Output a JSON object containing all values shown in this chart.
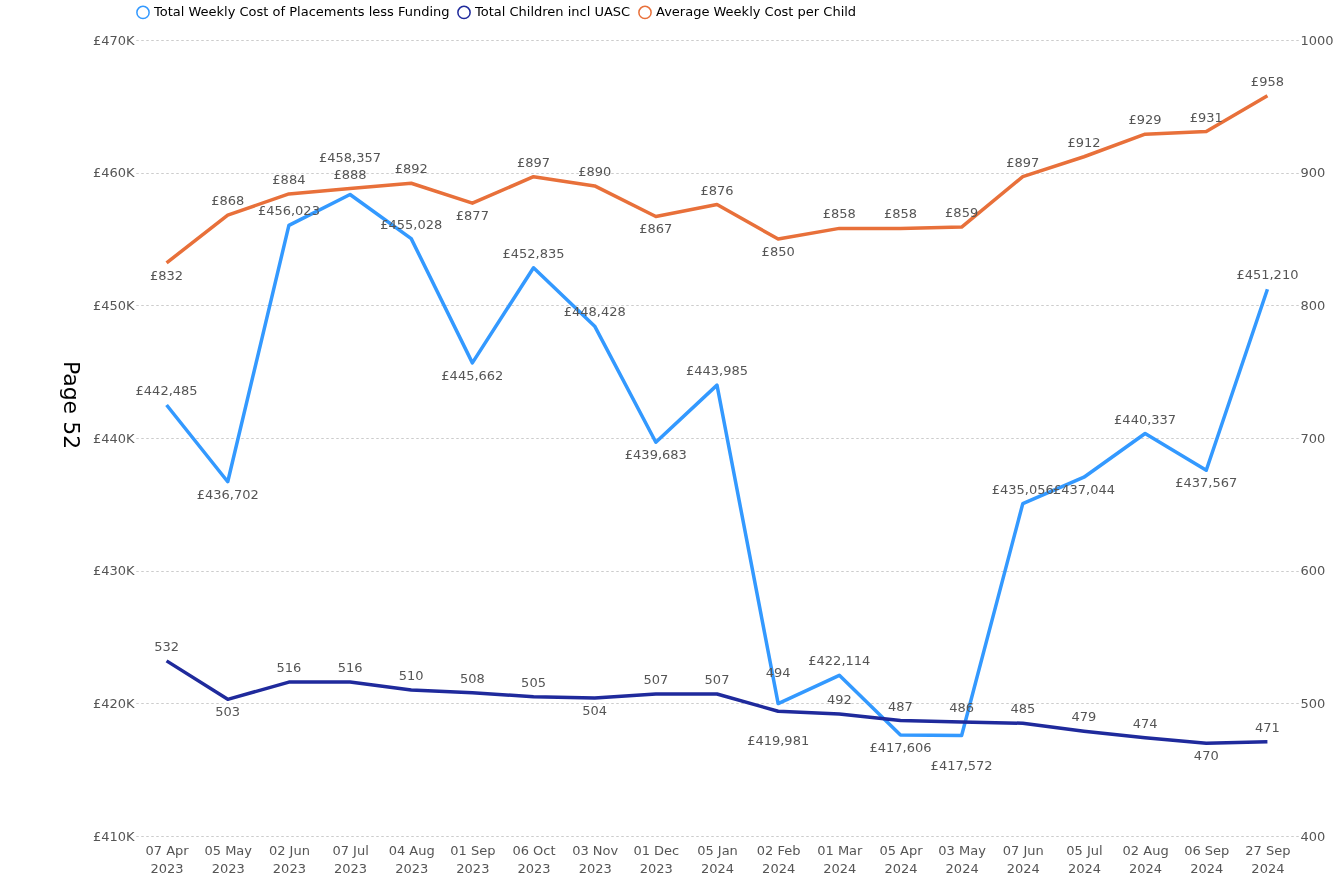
{
  "chart_data": {
    "type": "line",
    "categories": [
      "07 Apr 2023",
      "05 May 2023",
      "02 Jun 2023",
      "07 Jul 2023",
      "04 Aug 2023",
      "01 Sep 2023",
      "06 Oct 2023",
      "03 Nov 2023",
      "01 Dec 2023",
      "05 Jan 2024",
      "02 Feb 2024",
      "01 Mar 2024",
      "05 Apr 2024",
      "03 May 2024",
      "07 Jun 2024",
      "05 Jul 2024",
      "02 Aug 2024",
      "06 Sep 2024",
      "27 Sep 2024"
    ],
    "series": [
      {
        "name": "Total Weekly Cost of Placements less Funding",
        "color": "#3399ff",
        "values": [
          442485,
          436702,
          456023,
          458357,
          455028,
          445662,
          452835,
          448428,
          439683,
          443985,
          419981,
          422114,
          417606,
          417572,
          435056,
          437044,
          440337,
          437567,
          451210
        ],
        "value_labels": [
          "£442,485",
          "£436,702",
          "£456,023",
          "£458,357",
          "£455,028",
          "£445,662",
          "£452,835",
          "£448,428",
          "£439,683",
          "£443,985",
          "£419,981",
          "£422,114",
          "£417,606",
          "£417,572",
          "£435,056",
          "£437,044",
          "£440,337",
          "£437,567",
          "£451,210"
        ]
      },
      {
        "name": "Total Children incl UASC",
        "color": "#1f2a9c",
        "axis": "y2",
        "values": [
          532,
          503,
          516,
          516,
          510,
          508,
          505,
          504,
          507,
          507,
          494,
          492,
          487,
          486,
          485,
          479,
          474,
          470,
          471
        ],
        "value_labels": [
          "532",
          "503",
          "516",
          "516",
          "510",
          "508",
          "505",
          "504",
          "507",
          "507",
          "494",
          "492",
          "487",
          "486",
          "485",
          "479",
          "474",
          "470",
          "471"
        ]
      },
      {
        "name": "Average Weekly Cost per Child",
        "color": "#e8703a",
        "axis": "y2",
        "values": [
          832,
          868,
          884,
          888,
          892,
          877,
          897,
          890,
          867,
          876,
          850,
          858,
          858,
          859,
          897,
          912,
          929,
          931,
          958
        ],
        "value_labels": [
          "£832",
          "£868",
          "£884",
          "£888",
          "£892",
          "£877",
          "£897",
          "£890",
          "£867",
          "£876",
          "£850",
          "£858",
          "£858",
          "£859",
          "£897",
          "£912",
          "£929",
          "£931",
          "£958"
        ]
      }
    ],
    "ylim": [
      410000,
      470000
    ],
    "yticks": [
      {
        "value": 410000,
        "label": "£410K"
      },
      {
        "value": 420000,
        "label": "£420K"
      },
      {
        "value": 430000,
        "label": "£430K"
      },
      {
        "value": 440000,
        "label": "£440K"
      },
      {
        "value": 450000,
        "label": "£450K"
      },
      {
        "value": 460000,
        "label": "£460K"
      },
      {
        "value": 470000,
        "label": "£470K"
      }
    ],
    "y2lim": [
      400,
      1000
    ],
    "y2ticks": [
      400,
      500,
      600,
      700,
      800,
      900,
      1000
    ],
    "grid": "y",
    "legend": "top",
    "annotations": [
      "Page 52"
    ]
  }
}
